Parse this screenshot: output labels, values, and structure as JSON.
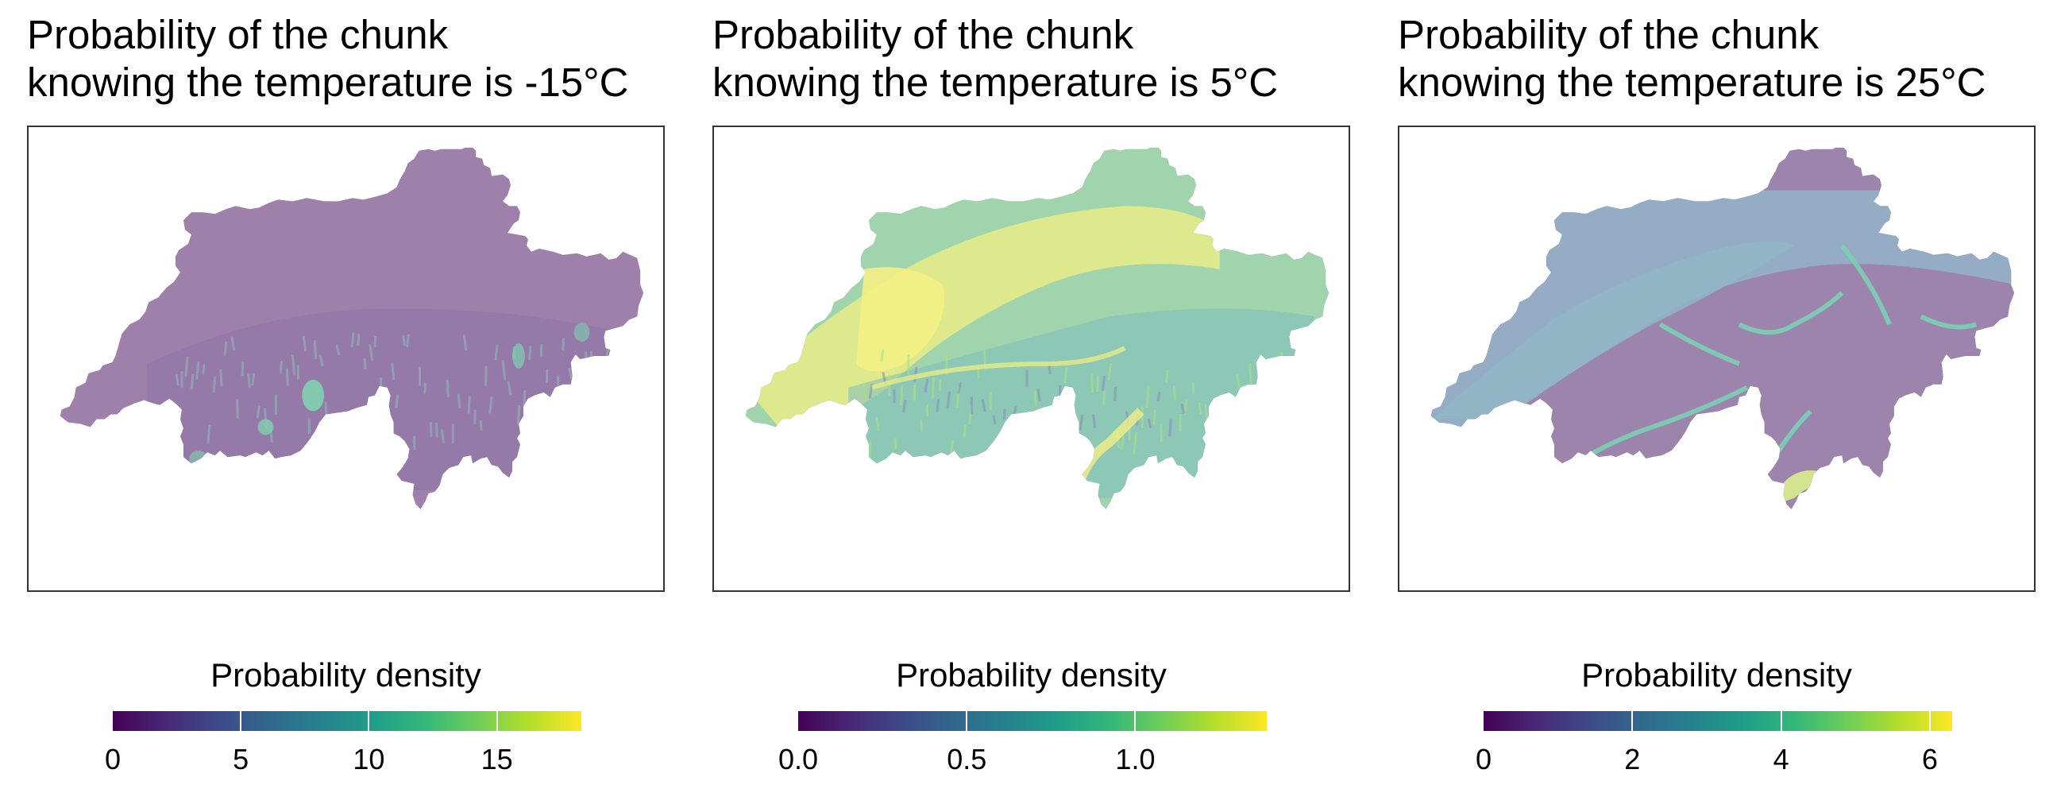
{
  "panels": [
    {
      "title_line1": "Probability of the chunk",
      "title_line2": "knowing the temperature is -15°C",
      "legend_title": "Probability density",
      "scale_max": 18.3,
      "ticks": [
        "0",
        "5",
        "10",
        "15"
      ],
      "tick_values": [
        0,
        5,
        10,
        15
      ],
      "colors": {
        "base": "#9f80ab",
        "valley": "#8870a6",
        "peak": "#7fd1b0",
        "alpine": "#8fb7b5"
      }
    },
    {
      "title_line1": "Probability of the chunk",
      "title_line2": "knowing the temperature is 5°C",
      "legend_title": "Probability density",
      "scale_max": 1.39,
      "ticks": [
        "0.0",
        "0.5",
        "1.0"
      ],
      "tick_values": [
        0,
        0.5,
        1.0
      ],
      "colors": {
        "base": "#9fd4ac",
        "plateau": "#e7ec86",
        "lake": "#f4ef84",
        "valley": "#a9e08a",
        "alpine": "#7dbbbd",
        "ridge": "#8a8fbd"
      }
    },
    {
      "title_line1": "Probability of the chunk",
      "title_line2": "knowing the temperature is 25°C",
      "legend_title": "Probability density",
      "scale_max": 6.3,
      "ticks": [
        "0",
        "2",
        "4",
        "6"
      ],
      "tick_values": [
        0,
        2,
        4,
        6
      ],
      "colors": {
        "base": "#9c84ad",
        "plateau": "#91b6c6",
        "north": "#94b0c6",
        "valley": "#7ccfb4",
        "lake": "#d6e98e"
      }
    }
  ],
  "colormap": [
    "#440154",
    "#482878",
    "#3e4989",
    "#31688e",
    "#26828e",
    "#1f9e89",
    "#35b779",
    "#6ece58",
    "#b5de2b",
    "#fde725"
  ]
}
